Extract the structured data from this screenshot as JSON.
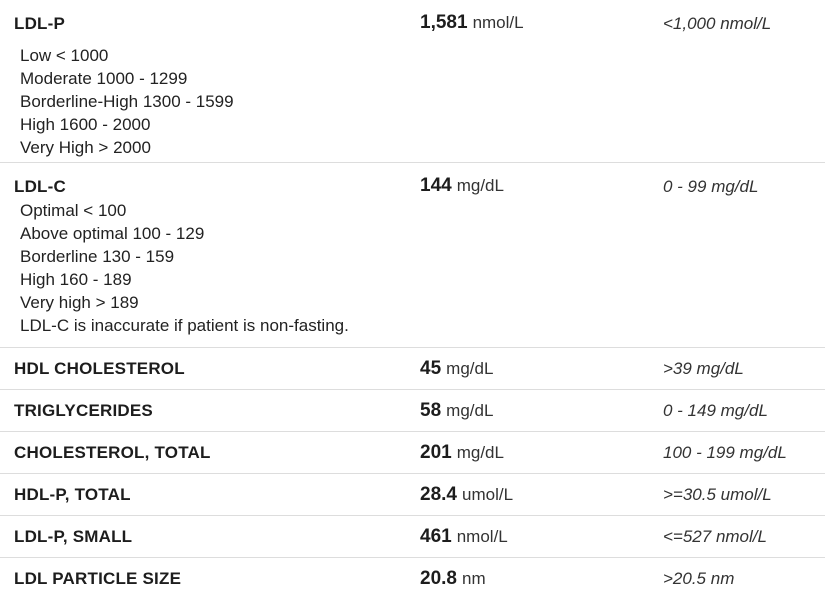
{
  "rows": [
    {
      "name": "LDL-P",
      "value": "1,581",
      "unit": "nmol/L",
      "range": "<1,000 nmol/L",
      "notes": [
        "Low < 1000",
        "Moderate 1000 - 1299",
        "Borderline-High 1300 - 1599",
        "High 1600 - 2000",
        "Very High > 2000"
      ]
    },
    {
      "name": "LDL-C",
      "value": "144",
      "unit": "mg/dL",
      "range": "0 - 99 mg/dL",
      "notes": [
        "Optimal < 100",
        "Above optimal 100 - 129",
        "Borderline 130 - 159",
        "High 160 - 189",
        "Very high > 189",
        "LDL-C is inaccurate if patient is non-fasting."
      ]
    },
    {
      "name": "HDL CHOLESTEROL",
      "value": "45",
      "unit": "mg/dL",
      "range": ">39 mg/dL"
    },
    {
      "name": "TRIGLYCERIDES",
      "value": "58",
      "unit": "mg/dL",
      "range": "0 - 149 mg/dL"
    },
    {
      "name": "CHOLESTEROL, TOTAL",
      "value": "201",
      "unit": "mg/dL",
      "range": "100 - 199 mg/dL"
    },
    {
      "name": "HDL-P, TOTAL",
      "value": "28.4",
      "unit": "umol/L",
      "range": ">=30.5 umol/L"
    },
    {
      "name": "LDL-P, SMALL",
      "value": "461",
      "unit": "nmol/L",
      "range": "<=527 nmol/L"
    },
    {
      "name": "LDL PARTICLE SIZE",
      "value": "20.8",
      "unit": "nm",
      "range": ">20.5 nm"
    }
  ]
}
